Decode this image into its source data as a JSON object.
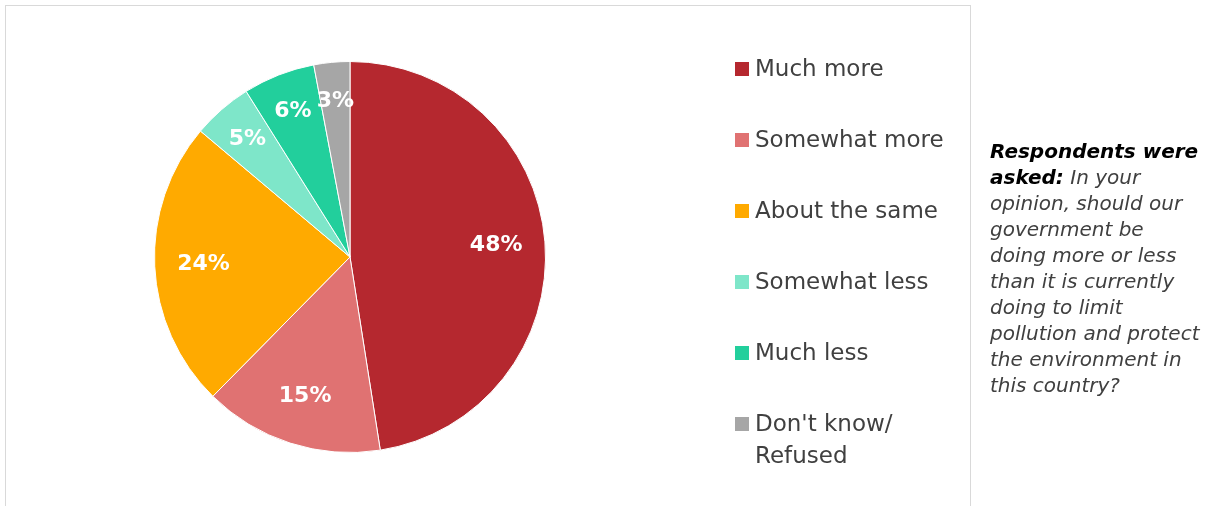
{
  "chart_data": {
    "type": "pie",
    "categories": [
      "Much more",
      "Somewhat more",
      "About the same",
      "Somewhat less",
      "Much less",
      "Don't know/ Refused"
    ],
    "values": [
      48,
      15,
      24,
      5,
      6,
      3
    ],
    "colors": [
      "#b5282f",
      "#e07272",
      "#ffaa00",
      "#7ee6c9",
      "#22cf9c",
      "#a6a6a6"
    ],
    "value_labels": [
      "48%",
      "15%",
      "24%",
      "5%",
      "6%",
      "3%"
    ],
    "legend": "right",
    "annotations": [
      "Respondents were asked:",
      "In your opinion, should our government be doing more or less than it is currently doing to limit pollution and protect the environment in this country?"
    ]
  }
}
